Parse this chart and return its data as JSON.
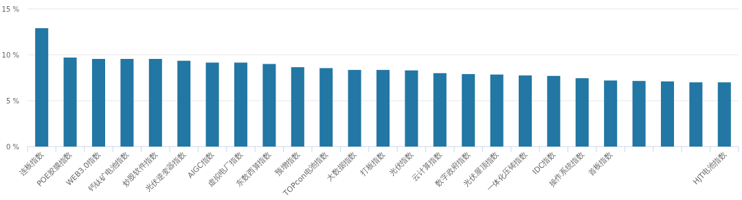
{
  "chart_data": {
    "type": "bar",
    "categories": [
      "连板指数",
      "POE胶膜指数",
      "WEB3.0指数",
      "钙钛矿电池指数",
      "炒股软件指数",
      "光伏逆变器指数",
      "AIGC指数",
      "虚拟电厂指数",
      "东数西算指数",
      "预增指数",
      "TOPcon电池指数",
      "大数据指数",
      "打板指数",
      "光伏指数",
      "云计算指数",
      "数字政府指数",
      "光伏屋顶指数",
      "一体化压铸指数",
      "IDC指数",
      "操作系统指数",
      "首板指数",
      null,
      null,
      null,
      "HJT电池指数"
    ],
    "values": [
      12.9,
      9.7,
      9.55,
      9.55,
      9.55,
      9.35,
      9.15,
      9.15,
      9.0,
      8.65,
      8.55,
      8.35,
      8.35,
      8.3,
      8.0,
      7.9,
      7.85,
      7.75,
      7.7,
      7.45,
      7.2,
      7.15,
      7.1,
      7.0,
      7.0
    ],
    "color": "#2277a4",
    "ylim": [
      0,
      15
    ],
    "yticks": [
      {
        "value": 0,
        "label": "0 %"
      },
      {
        "value": 5,
        "label": "5 %"
      },
      {
        "value": 10,
        "label": "10 %"
      },
      {
        "value": 15,
        "label": "15 %"
      }
    ],
    "grid": "y"
  }
}
